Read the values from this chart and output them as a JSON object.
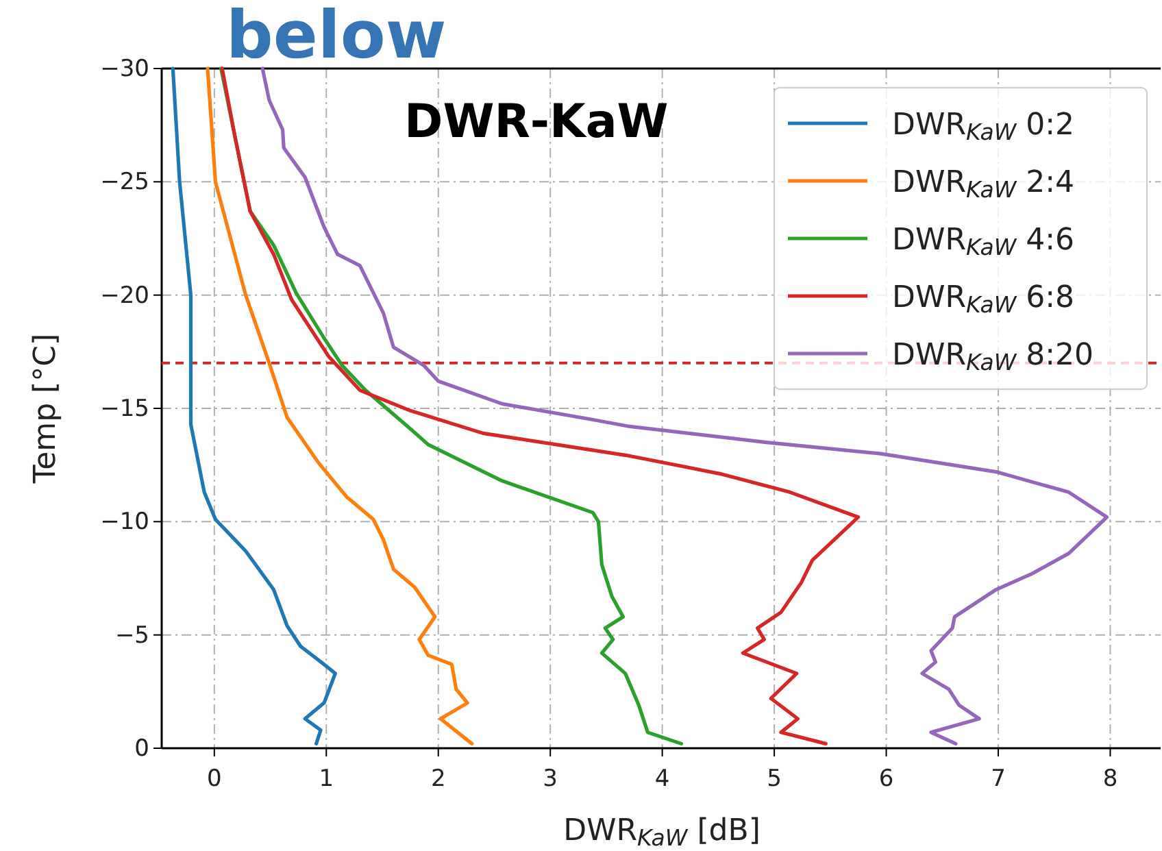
{
  "chart_data": {
    "type": "line",
    "title": "DWR-KaW",
    "xlabel": "DWR$_{KaW}$ [dB]",
    "ylabel": "Temp [°C]",
    "annotations": [
      "below"
    ],
    "xlim": [
      -0.47,
      8.45
    ],
    "ylim": [
      0,
      -30
    ],
    "xticks": [
      0,
      1,
      2,
      3,
      4,
      5,
      6,
      7,
      8
    ],
    "yticks": [
      0,
      -5,
      -10,
      -15,
      -20,
      -25,
      -30
    ],
    "grid": true,
    "legend": "top right",
    "line_style": "solid",
    "ref_lines": [
      {
        "axis": "y",
        "value": -17,
        "color": "#d62728",
        "line_style": "dashed"
      }
    ],
    "series": [
      {
        "name": "DWR$_{KaW}$ 0:2",
        "color": "#1f77b4",
        "x": [
          -0.37,
          -0.31,
          -0.21,
          -0.21,
          -0.21,
          -0.09,
          0.01,
          0.28,
          0.53,
          0.65,
          0.77,
          0.98,
          1.08,
          0.98,
          0.81,
          0.95,
          0.91
        ],
        "values": [
          -30,
          -25,
          -20,
          -15,
          -14.3,
          -11.3,
          -10.1,
          -8.7,
          -7.0,
          -5.4,
          -4.5,
          -3.7,
          -3.3,
          -2.0,
          -1.3,
          -0.8,
          -0.2
        ]
      },
      {
        "name": "DWR$_{KaW}$ 2:4",
        "color": "#ff7f0e",
        "x": [
          -0.06,
          0.01,
          0.28,
          0.49,
          0.65,
          0.93,
          1.18,
          1.42,
          1.51,
          1.6,
          1.79,
          1.97,
          1.83,
          1.91,
          2.12,
          2.16,
          2.26,
          2.02,
          2.3
        ],
        "values": [
          -30,
          -25,
          -20,
          -17.0,
          -14.6,
          -12.6,
          -11.1,
          -10.1,
          -9.2,
          -7.9,
          -7.1,
          -5.8,
          -4.8,
          -4.1,
          -3.7,
          -2.6,
          -2.0,
          -1.3,
          -0.2
        ]
      },
      {
        "name": "DWR$_{KaW}$ 4:6",
        "color": "#2ca02c",
        "x": [
          0.06,
          0.32,
          0.53,
          0.73,
          0.98,
          1.14,
          1.35,
          1.75,
          1.91,
          2.57,
          3.38,
          3.43,
          3.46,
          3.55,
          3.65,
          3.49,
          3.56,
          3.46,
          3.67,
          3.79,
          3.87,
          4.17
        ],
        "values": [
          -30,
          -23.7,
          -22.2,
          -20.1,
          -18.1,
          -16.9,
          -15.8,
          -14.1,
          -13.4,
          -11.8,
          -10.4,
          -10.0,
          -8.1,
          -6.7,
          -5.8,
          -5.3,
          -4.8,
          -4.2,
          -3.3,
          -1.9,
          -0.7,
          -0.2
        ]
      },
      {
        "name": "DWR$_{KaW}$ 6:8",
        "color": "#d62728",
        "x": [
          0.07,
          0.18,
          0.32,
          0.53,
          0.69,
          1.02,
          1.3,
          1.75,
          2.4,
          3.71,
          4.53,
          5.14,
          5.75,
          5.34,
          5.24,
          5.06,
          4.85,
          4.91,
          4.72,
          5.2,
          4.97,
          5.21,
          5.06,
          5.46
        ],
        "values": [
          -30,
          -27.1,
          -23.7,
          -21.8,
          -19.8,
          -17.3,
          -15.8,
          -14.9,
          -13.9,
          -12.9,
          -12.1,
          -11.3,
          -10.2,
          -8.3,
          -7.3,
          -6.0,
          -5.3,
          -4.8,
          -4.2,
          -3.3,
          -2.2,
          -1.3,
          -0.7,
          -0.2
        ]
      },
      {
        "name": "DWR$_{KaW}$ 8:20",
        "color": "#9467bd",
        "x": [
          0.43,
          0.49,
          0.61,
          0.62,
          0.81,
          0.98,
          1.1,
          1.3,
          1.51,
          1.6,
          1.87,
          2.0,
          2.57,
          3.38,
          3.71,
          4.93,
          5.95,
          6.98,
          7.63,
          7.97,
          7.63,
          7.3,
          6.98,
          6.61,
          6.59,
          6.4,
          6.44,
          6.32,
          6.56,
          6.65,
          6.83,
          6.4,
          6.62
        ],
        "values": [
          -30,
          -28.6,
          -27.3,
          -26.5,
          -25.2,
          -23.0,
          -21.8,
          -21.3,
          -19.2,
          -17.7,
          -16.9,
          -16.2,
          -15.2,
          -14.5,
          -14.2,
          -13.5,
          -13.0,
          -12.2,
          -11.3,
          -10.2,
          -8.6,
          -7.7,
          -7.0,
          -5.8,
          -5.3,
          -4.3,
          -3.8,
          -3.3,
          -2.6,
          -1.9,
          -1.3,
          -0.7,
          -0.2
        ]
      }
    ]
  }
}
